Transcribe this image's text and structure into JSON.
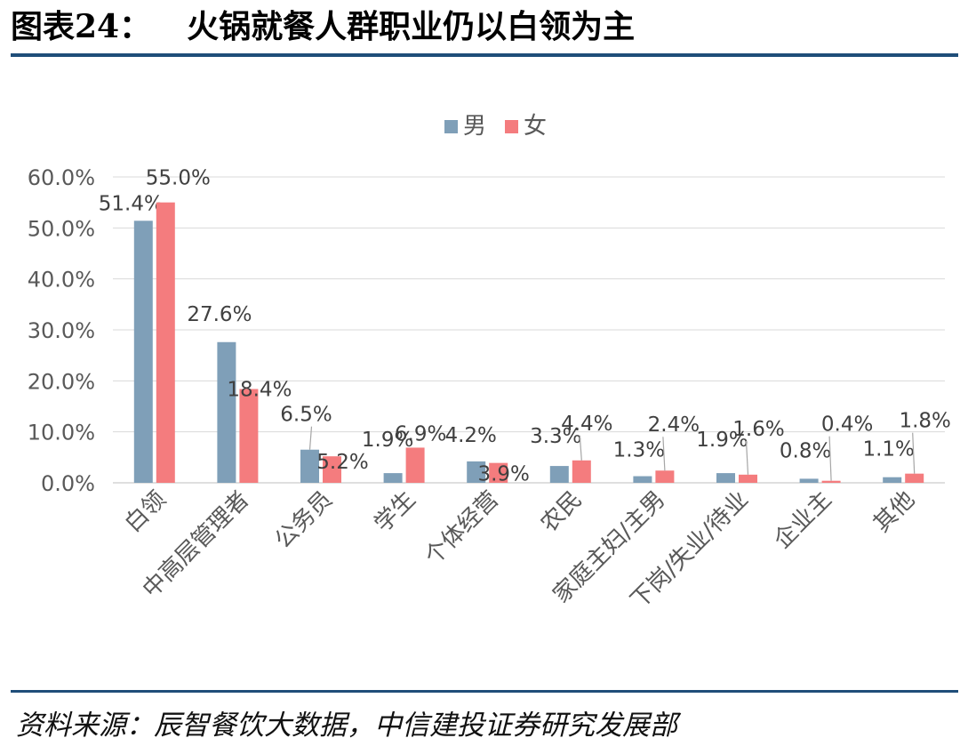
{
  "figure": {
    "number": "图表24：",
    "title": "火锅就餐人群职业仍以白领为主",
    "source": "资料来源：辰智餐饮大数据，中信建投证券研究发展部"
  },
  "chart_data": {
    "type": "bar",
    "title": "",
    "xlabel": "",
    "ylabel": "",
    "categories": [
      "白领",
      "中高层管理者",
      "公务员",
      "学生",
      "个体经营",
      "农民",
      "家庭主妇/主男",
      "下岗/失业/待业",
      "企业主",
      "其他"
    ],
    "series": [
      {
        "name": "男",
        "color": "#7f9fb8",
        "values": [
          51.4,
          27.6,
          6.5,
          1.9,
          4.2,
          3.3,
          1.3,
          1.9,
          0.8,
          1.1
        ],
        "labels": [
          "51.4%",
          "27.6%",
          "6.5%",
          "1.9%",
          "4.2%",
          "3.3%",
          "1.3%",
          "1.9%",
          "0.8%",
          "1.1%"
        ]
      },
      {
        "name": "女",
        "color": "#f47c7e",
        "values": [
          55.0,
          18.4,
          5.2,
          6.9,
          3.9,
          4.4,
          2.4,
          1.6,
          0.4,
          1.8
        ],
        "labels": [
          "55.0%",
          "18.4%",
          "5.2%",
          "6.9%",
          "3.9%",
          "4.4%",
          "2.4%",
          "1.6%",
          "0.4%",
          "1.8%"
        ]
      }
    ],
    "ylim": [
      0,
      60
    ],
    "yticks": [
      "0.0%",
      "10.0%",
      "20.0%",
      "30.0%",
      "40.0%",
      "50.0%",
      "60.0%"
    ],
    "grid": true,
    "legend": "top-center"
  }
}
